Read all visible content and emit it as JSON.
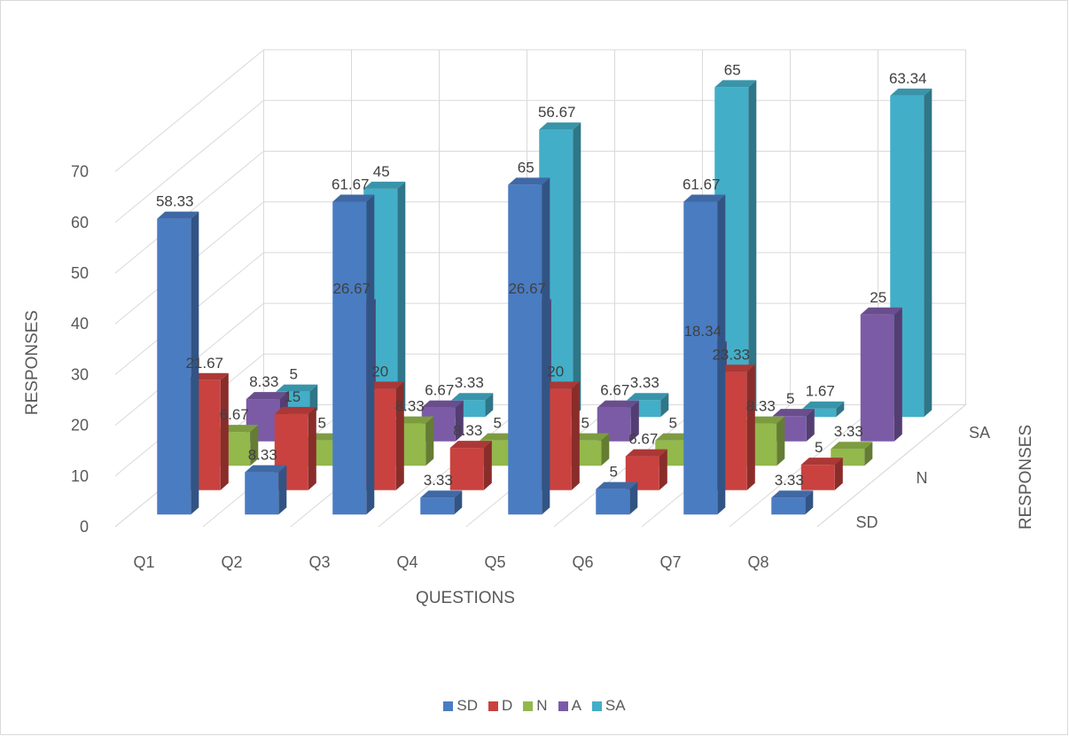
{
  "chart_data": {
    "type": "bar",
    "subtype": "3d-column",
    "title": "",
    "xlabel": "QUESTIONS",
    "ylabel": "RESPONSES",
    "zlabel": "RESPONSES",
    "categories": [
      "Q1",
      "Q2",
      "Q3",
      "Q4",
      "Q5",
      "Q6",
      "Q7",
      "Q8"
    ],
    "depth_ticks": [
      "SD",
      "N",
      "SA"
    ],
    "y_ticks": [
      "0",
      "10",
      "20",
      "30",
      "40",
      "50",
      "60",
      "70"
    ],
    "ylim": [
      0,
      70
    ],
    "grid": true,
    "legend_position": "bottom",
    "series": [
      {
        "name": "SD",
        "color": "#4a7cc2",
        "values": [
          58.33,
          8.33,
          61.67,
          3.33,
          65,
          5,
          61.67,
          3.33
        ],
        "labels": [
          "58.33",
          "8.33",
          "61.67",
          "3.33",
          "65",
          "5",
          "61.67",
          "3.33"
        ]
      },
      {
        "name": "D",
        "color": "#c9423f",
        "values": [
          21.67,
          15,
          20,
          8.33,
          20,
          6.67,
          23.33,
          5
        ],
        "labels": [
          "21.67",
          "15",
          "20",
          "8.33",
          "20",
          "6.67",
          "23.33",
          "5"
        ]
      },
      {
        "name": "N",
        "color": "#93b84b",
        "values": [
          6.67,
          5,
          8.33,
          5,
          5,
          5,
          8.33,
          3.33
        ],
        "labels": [
          "6.67",
          "5",
          "8.33",
          "5",
          "5",
          "5",
          "8.33",
          "3.33"
        ]
      },
      {
        "name": "A",
        "color": "#7b5ba6",
        "values": [
          8.33,
          26.67,
          6.67,
          26.67,
          6.67,
          18.34,
          5,
          25
        ],
        "labels": [
          "8.33",
          "26.67",
          "6.67",
          "26.67",
          "6.67",
          "18.34",
          "5",
          "25"
        ]
      },
      {
        "name": "SA",
        "color": "#43aec8",
        "values": [
          5,
          45,
          3.33,
          56.67,
          3.33,
          65,
          1.67,
          63.34
        ],
        "labels": [
          "5",
          "45",
          "3.33",
          "56.67",
          "3.33",
          "65",
          "1.67",
          "63.34"
        ]
      }
    ]
  }
}
